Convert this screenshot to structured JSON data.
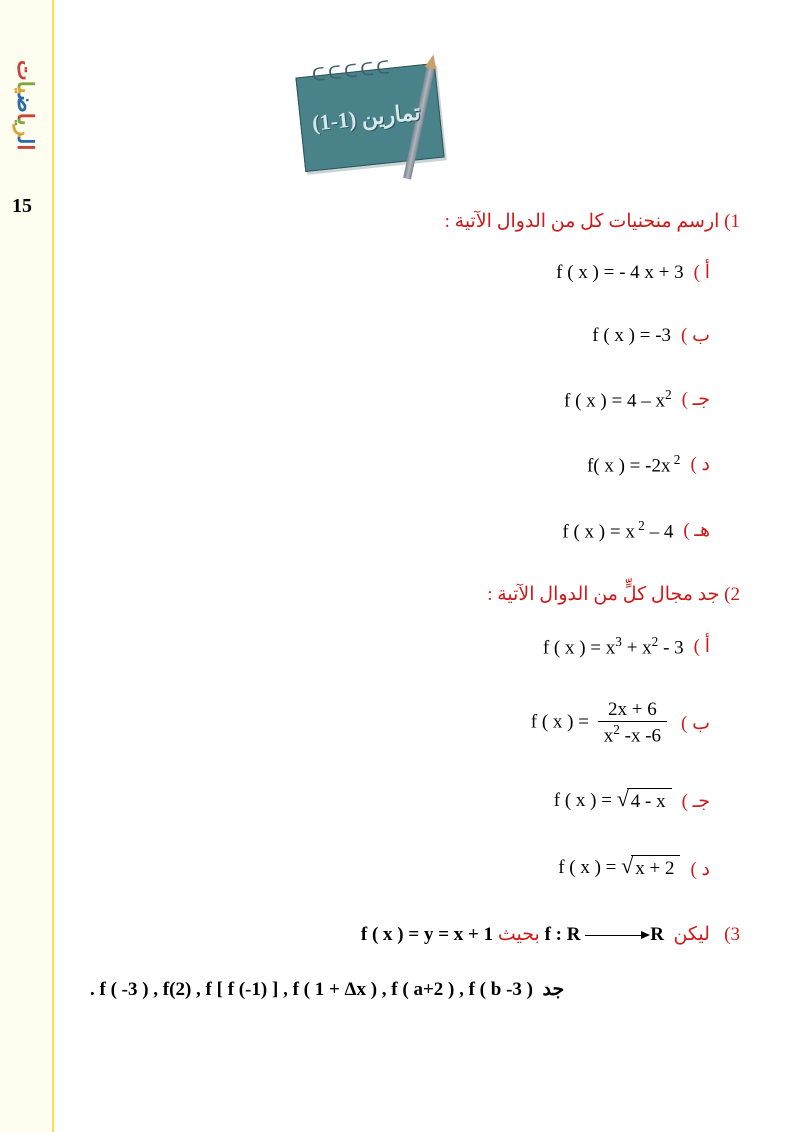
{
  "sidebar": {
    "title_chars": [
      "ا",
      "ل",
      "ر",
      "ي",
      "ا",
      "ض",
      "ي",
      "ا",
      "ت"
    ],
    "page_number": "15"
  },
  "notepad": {
    "label": "تمارين (1-1)",
    "spiral": "ᑕᑕᑕᑕᑕ"
  },
  "q1": {
    "heading": "1) ارسم منحنيات كل من الدوال الآتية :",
    "items": [
      {
        "bullet": "أ )",
        "formula": "f ( x ) = - 4 x + 3"
      },
      {
        "bullet": "ب )",
        "formula": "f ( x ) = -3"
      },
      {
        "bullet": "جـ )",
        "formula_html": "f ( x ) =  4 – x<sup>2</sup>"
      },
      {
        "bullet": "د )",
        "formula_html": "f( x ) = -2x<sup> 2</sup>"
      },
      {
        "bullet": "هـ )",
        "formula_html": "f ( x ) =  x<sup> 2</sup> – 4"
      }
    ]
  },
  "q2": {
    "heading": "2) جد مجال كلٍّ من الدوال الآتية :",
    "items": [
      {
        "bullet": "أ )",
        "formula_html": "f ( x )  =  x<sup>3</sup> + x<sup>2</sup>  - 3"
      },
      {
        "bullet": "ب )",
        "type": "frac",
        "lhs": "f ( x )  =",
        "num": "2x +  6",
        "den_html": "x<sup>2</sup> -x -6"
      },
      {
        "bullet": "جـ )",
        "type": "sqrt",
        "lhs": "f ( x )  = ",
        "arg": "4  - x"
      },
      {
        "bullet": "د )",
        "type": "sqrt",
        "lhs": "f ( x )  = ",
        "arg": "x + 2"
      }
    ]
  },
  "q3": {
    "intro_num": "3)",
    "let": "ليكن",
    "fR1": "f : R",
    "fR2": "R",
    "where": "بحيث",
    "def": "f ( x ) = y = x + 1",
    "find_label": "جد",
    "find": ".  f ( -3 ) , f(2) , f [ f (-1) ] , f ( 1 + Δx ) , f  ( a+2 ) , f ( b -3 )"
  },
  "colors": {
    "heading": "#d01818",
    "text": "#000000",
    "notepad_bg": "#4a8289",
    "sidebar_bg": "#fefdf0",
    "yellow_bar": "#f5e642"
  }
}
